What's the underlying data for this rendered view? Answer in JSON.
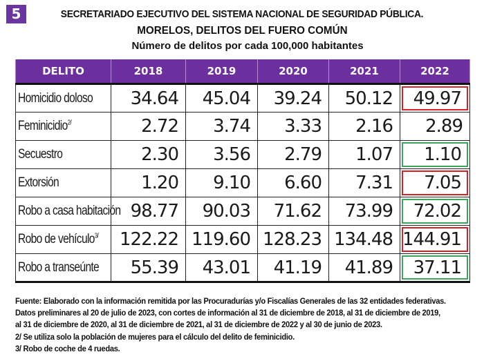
{
  "badge": "5",
  "header": {
    "title_line1": "SECRETARIADO EJECUTIVO DEL SISTEMA NACIONAL DE SEGURIDAD PÚBLICA.",
    "title_line2": "MORELOS, DELITOS DEL FUERO COMÚN",
    "subtitle": "Número de delitos por cada 100,000 habitantes"
  },
  "colors": {
    "header_bg": "#6b2f9e",
    "highlight_increase": "#d42027",
    "highlight_decrease": "#3aa55a"
  },
  "table": {
    "columns": [
      "DELITO",
      "2018",
      "2019",
      "2020",
      "2021",
      "2022"
    ],
    "rows": [
      {
        "delito": "Homicidio doloso",
        "note": "",
        "values": [
          "34.64",
          "45.04",
          "39.24",
          "50.12",
          "49.97"
        ],
        "highlight_2022": "red"
      },
      {
        "delito": "Feminicidio",
        "note": "2/",
        "values": [
          "2.72",
          "3.74",
          "3.33",
          "2.16",
          "2.89"
        ],
        "highlight_2022": "none"
      },
      {
        "delito": "Secuestro",
        "note": "",
        "values": [
          "2.30",
          "3.56",
          "2.79",
          "1.07",
          "1.10"
        ],
        "highlight_2022": "green"
      },
      {
        "delito": "Extorsión",
        "note": "",
        "values": [
          "1.20",
          "9.10",
          "6.60",
          "7.31",
          "7.05"
        ],
        "highlight_2022": "red"
      },
      {
        "delito": "Robo a casa habitación",
        "note": "",
        "values": [
          "98.77",
          "90.03",
          "71.62",
          "73.99",
          "72.02"
        ],
        "highlight_2022": "green"
      },
      {
        "delito": "Robo de vehículo",
        "note": "3/",
        "values": [
          "122.22",
          "119.60",
          "128.23",
          "134.48",
          "144.91"
        ],
        "highlight_2022": "red"
      },
      {
        "delito": "Robo a transeúnte",
        "note": "",
        "values": [
          "55.39",
          "43.01",
          "41.19",
          "41.89",
          "37.11"
        ],
        "highlight_2022": "green"
      }
    ]
  },
  "footer": {
    "lines": [
      "Fuente: Elaborado con la información remitida por las Procuradurías y/o Fiscalías Generales de las 32 entidades federativas.",
      "Datos preliminares al 20 de julio de 2023, con cortes de información al 31 de diciembre de 2018, al 31 de diciembre de 2019,",
      "al 31 de diciembre de 2020, al 31 de diciembre de 2021, al 31 de diciembre de 2022 y al 30 de junio de 2023.",
      "2/ Se utiliza solo la población de mujeres para el cálculo del delito de feminicidio.",
      "3/ Robo de coche de 4 ruedas."
    ]
  }
}
